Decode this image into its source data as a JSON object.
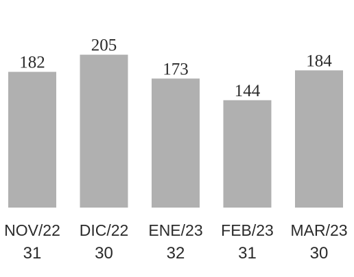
{
  "chart_data": {
    "type": "bar",
    "categories": [
      "NOV/22",
      "DIC/22",
      "ENE/23",
      "FEB/23",
      "MAR/23"
    ],
    "sublabels": [
      "31",
      "30",
      "32",
      "31",
      "30"
    ],
    "values": [
      182,
      205,
      173,
      144,
      184
    ],
    "data_labels": [
      "182",
      "205",
      "173",
      "144",
      "184"
    ],
    "ylim": [
      0,
      220
    ],
    "grid": false,
    "legend": "none",
    "colors": {
      "bar": "#b0b0b0",
      "text": "#2a2a2a",
      "background": "#ffffff"
    }
  }
}
